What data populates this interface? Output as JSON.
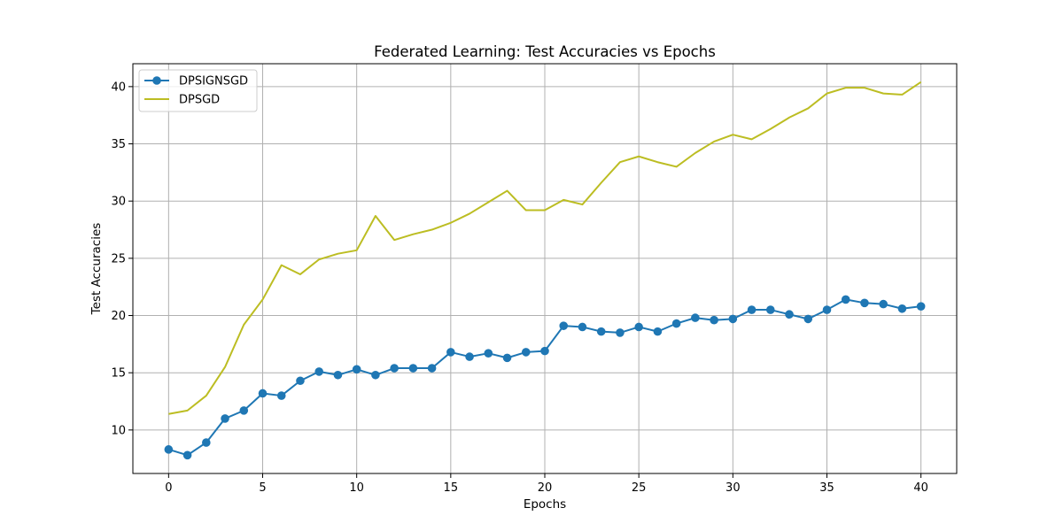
{
  "chart_data": {
    "type": "line",
    "title": "Federated Learning: Test Accuracies vs Epochs",
    "xlabel": "Epochs",
    "ylabel": "Test Accuracies",
    "xlim": [
      -1.9,
      41.9
    ],
    "ylim": [
      6.2,
      42.0
    ],
    "xticks": [
      0,
      5,
      10,
      15,
      20,
      25,
      30,
      35,
      40
    ],
    "yticks": [
      10,
      15,
      20,
      25,
      30,
      35,
      40
    ],
    "grid": true,
    "legend_position": "top-left",
    "x": [
      0,
      1,
      2,
      3,
      4,
      5,
      6,
      7,
      8,
      9,
      10,
      11,
      12,
      13,
      14,
      15,
      16,
      17,
      18,
      19,
      20,
      21,
      22,
      23,
      24,
      25,
      26,
      27,
      28,
      29,
      30,
      31,
      32,
      33,
      34,
      35,
      36,
      37,
      38,
      39,
      40
    ],
    "series": [
      {
        "name": "DPSIGNSGD",
        "color": "#1f77b4",
        "marker": "circle",
        "values": [
          8.3,
          7.8,
          8.9,
          11.0,
          11.7,
          13.2,
          13.0,
          14.3,
          15.1,
          14.8,
          15.3,
          14.8,
          15.4,
          15.4,
          15.4,
          16.8,
          16.4,
          16.7,
          16.3,
          16.8,
          16.9,
          19.1,
          19.0,
          18.6,
          18.5,
          19.0,
          18.6,
          19.3,
          19.8,
          19.6,
          19.7,
          20.5,
          20.5,
          20.1,
          19.7,
          20.5,
          21.4,
          21.1,
          21.0,
          20.6,
          20.8
        ]
      },
      {
        "name": "DPSGD",
        "color": "#bcbd22",
        "marker": "none",
        "values": [
          11.4,
          11.7,
          13.0,
          15.5,
          19.2,
          21.4,
          24.4,
          23.6,
          24.9,
          25.4,
          25.7,
          28.7,
          26.6,
          27.1,
          27.5,
          28.1,
          28.9,
          29.9,
          30.9,
          29.2,
          29.2,
          30.1,
          29.7,
          31.6,
          33.4,
          33.9,
          33.4,
          33.0,
          34.2,
          35.2,
          35.8,
          35.4,
          36.3,
          37.3,
          38.1,
          39.4,
          39.9,
          39.9,
          39.4,
          39.3,
          40.4
        ]
      }
    ]
  }
}
